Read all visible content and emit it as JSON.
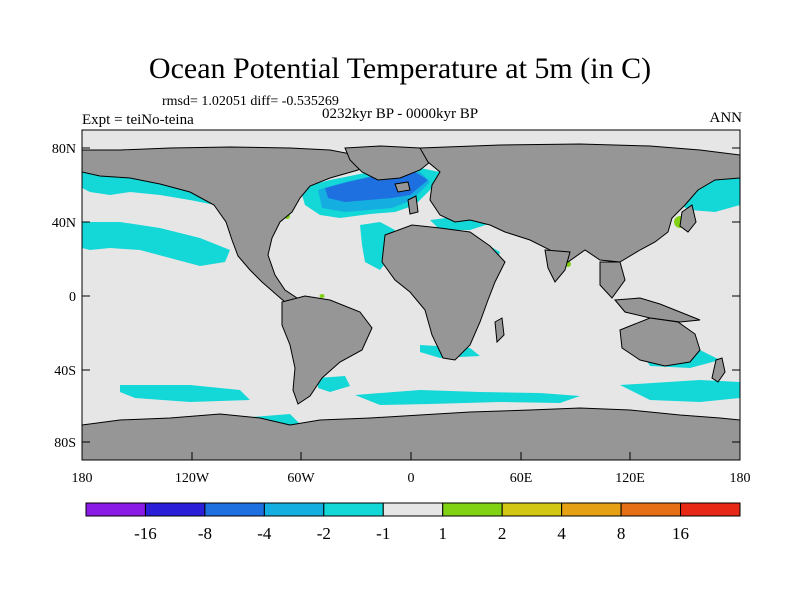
{
  "title": "Ocean Potential Temperature at 5m (in C)",
  "stats": "rmsd= 1.02051 diff= -0.535269",
  "left_label": "Expt = teiNo-teina",
  "center_label": "0232kyr BP - 0000kyr BP",
  "right_label": "ANN",
  "colors": {
    "land": "#969696",
    "ocean_neutral": "#e6e6e6",
    "coast": "#000000"
  },
  "lat_ticks": [
    "80N",
    "40N",
    "0",
    "40S",
    "80S"
  ],
  "lon_ticks": [
    "180",
    "120W",
    "60W",
    "0",
    "60E",
    "120E",
    "180"
  ],
  "colorbar": {
    "colors": [
      "#8a1ae6",
      "#2a1ed8",
      "#1e70e0",
      "#14aee0",
      "#14d7d7",
      "#e6e6e6",
      "#82d214",
      "#d2c814",
      "#e6a014",
      "#e66e14",
      "#e62814"
    ],
    "labels": [
      "-16",
      "-8",
      "-4",
      "-2",
      "-1",
      "1",
      "2",
      "4",
      "8",
      "16"
    ]
  }
}
